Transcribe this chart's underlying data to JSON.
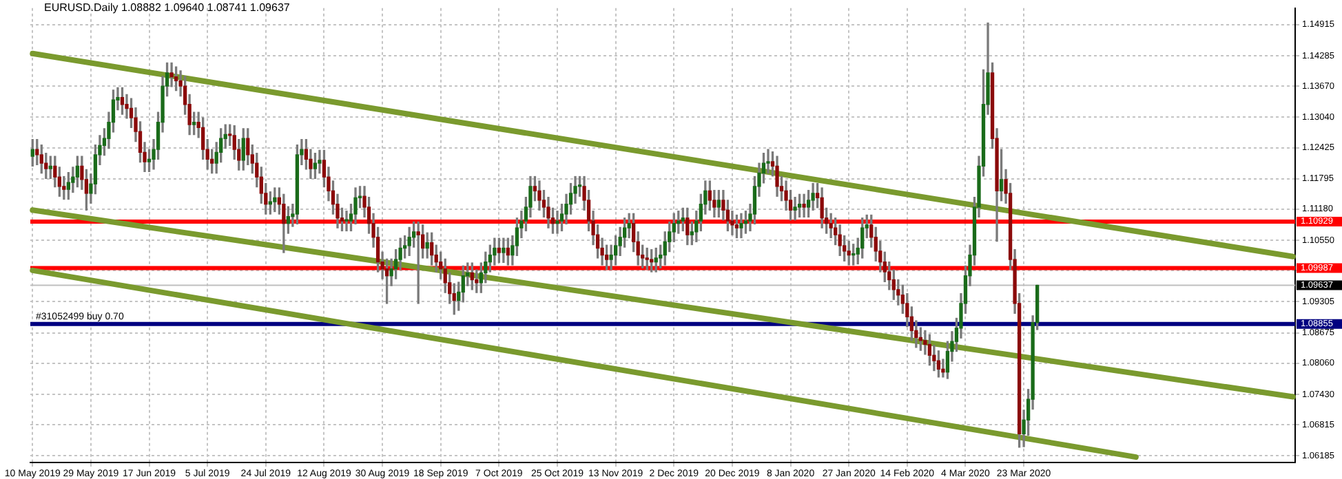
{
  "chart_data": {
    "type": "candlestick",
    "title": "EURUSD.Daily 1.08882 1.09640 1.08741 1.09637",
    "categories": [
      "10 May 2019",
      null,
      null,
      null,
      null,
      null,
      null,
      null,
      null,
      null,
      null,
      null,
      null,
      "29 May 2019",
      null,
      null,
      null,
      null,
      null,
      null,
      null,
      null,
      null,
      null,
      null,
      null,
      "17 Jun 2019",
      null,
      null,
      null,
      null,
      null,
      null,
      null,
      null,
      null,
      null,
      null,
      null,
      "5 Jul 2019",
      null,
      null,
      null,
      null,
      null,
      null,
      null,
      null,
      null,
      null,
      null,
      null,
      "24 Jul 2019",
      null,
      null,
      null,
      null,
      null,
      null,
      null,
      null,
      null,
      null,
      null,
      null,
      "12 Aug 2019",
      null,
      null,
      null,
      null,
      null,
      null,
      null,
      null,
      null,
      null,
      null,
      null,
      "30 Aug 2019",
      null,
      null,
      null,
      null,
      null,
      null,
      null,
      null,
      null,
      null,
      null,
      null,
      "18 Sep 2019",
      null,
      null,
      null,
      null,
      null,
      null,
      null,
      null,
      null,
      null,
      null,
      null,
      "7 Oct 2019",
      null,
      null,
      null,
      null,
      null,
      null,
      null,
      null,
      null,
      null,
      null,
      null,
      "25 Oct 2019",
      null,
      null,
      null,
      null,
      null,
      null,
      null,
      null,
      null,
      null,
      null,
      null,
      "13 Nov 2019",
      null,
      null,
      null,
      null,
      null,
      null,
      null,
      null,
      null,
      null,
      null,
      null,
      "2 Dec 2019",
      null,
      null,
      null,
      null,
      null,
      null,
      null,
      null,
      null,
      null,
      null,
      null,
      "20 Dec 2019",
      null,
      null,
      null,
      null,
      null,
      null,
      null,
      null,
      null,
      null,
      null,
      null,
      "8 Jan 2020",
      null,
      null,
      null,
      null,
      null,
      null,
      null,
      null,
      null,
      null,
      null,
      null,
      "27 Jan 2020",
      null,
      null,
      null,
      null,
      null,
      null,
      null,
      null,
      null,
      null,
      null,
      null,
      "14 Feb 2020",
      null,
      null,
      null,
      null,
      null,
      null,
      null,
      null,
      null,
      null,
      null,
      null,
      "4 Mar 2020",
      null,
      null,
      null,
      null,
      null,
      null,
      null,
      null,
      null,
      null,
      null,
      null,
      "23 Mar 2020",
      null,
      null,
      null,
      null,
      null,
      null,
      null,
      null,
      null,
      null,
      null,
      null,
      null,
      null,
      null,
      null,
      null,
      null,
      null,
      null,
      null,
      null,
      null,
      null,
      null,
      null,
      null,
      null,
      null,
      null,
      null,
      null,
      null,
      null,
      null,
      null,
      null,
      null,
      null,
      null,
      null,
      null,
      null,
      null,
      null,
      null,
      null,
      null,
      null,
      null,
      null,
      null,
      null,
      null,
      null,
      null,
      null,
      null,
      null,
      null
    ],
    "ohlc": [
      [
        1.1225,
        1.1259,
        1.1205,
        1.1239
      ],
      [
        1.1239,
        1.1259,
        1.1208,
        1.1228
      ],
      [
        1.1228,
        1.1248,
        1.1191,
        1.1211
      ],
      [
        1.1211,
        1.1231,
        1.118,
        1.12
      ],
      [
        1.12,
        1.1225,
        1.118,
        1.1205
      ],
      [
        1.1205,
        1.1225,
        1.1163,
        1.1183
      ],
      [
        1.1183,
        1.1203,
        1.1144,
        1.1164
      ],
      [
        1.1164,
        1.1184,
        1.1138,
        1.1158
      ],
      [
        1.1158,
        1.1192,
        1.1138,
        1.1172
      ],
      [
        1.1172,
        1.1203,
        1.1152,
        1.1183
      ],
      [
        1.1183,
        1.1225,
        1.1163,
        1.1205
      ],
      [
        1.1205,
        1.1225,
        1.1158,
        1.1178
      ],
      [
        1.1178,
        1.1198,
        1.1116,
        1.115
      ],
      [
        1.115,
        1.1189,
        1.113,
        1.1169
      ],
      [
        1.1169,
        1.1248,
        1.1149,
        1.1228
      ],
      [
        1.1228,
        1.1267,
        1.1208,
        1.1247
      ],
      [
        1.1247,
        1.1281,
        1.1227,
        1.1261
      ],
      [
        1.1261,
        1.1314,
        1.1241,
        1.1294
      ],
      [
        1.1294,
        1.1359,
        1.1274,
        1.1339
      ],
      [
        1.1339,
        1.1364,
        1.1319,
        1.1344
      ],
      [
        1.1344,
        1.1364,
        1.131,
        1.133
      ],
      [
        1.133,
        1.135,
        1.1302,
        1.1322
      ],
      [
        1.1322,
        1.1342,
        1.1283,
        1.1303
      ],
      [
        1.1303,
        1.1323,
        1.1255,
        1.1275
      ],
      [
        1.1275,
        1.1295,
        1.1213,
        1.1233
      ],
      [
        1.1233,
        1.1253,
        1.1194,
        1.1214
      ],
      [
        1.1214,
        1.1239,
        1.1194,
        1.1219
      ],
      [
        1.1219,
        1.1259,
        1.1199,
        1.1239
      ],
      [
        1.1239,
        1.1314,
        1.1219,
        1.1294
      ],
      [
        1.1294,
        1.1387,
        1.1274,
        1.1367
      ],
      [
        1.1367,
        1.1414,
        1.1347,
        1.1394
      ],
      [
        1.1394,
        1.1414,
        1.1366,
        1.1386
      ],
      [
        1.1386,
        1.1406,
        1.1358,
        1.1378
      ],
      [
        1.1378,
        1.1398,
        1.1347,
        1.1367
      ],
      [
        1.1367,
        1.1387,
        1.131,
        1.133
      ],
      [
        1.133,
        1.135,
        1.1269,
        1.1289
      ],
      [
        1.1289,
        1.1314,
        1.1269,
        1.1294
      ],
      [
        1.1294,
        1.1314,
        1.1263,
        1.1283
      ],
      [
        1.1283,
        1.1303,
        1.1219,
        1.1239
      ],
      [
        1.1239,
        1.1259,
        1.1199,
        1.1219
      ],
      [
        1.1219,
        1.1239,
        1.1191,
        1.1211
      ],
      [
        1.1211,
        1.1253,
        1.1191,
        1.1233
      ],
      [
        1.1233,
        1.1281,
        1.1213,
        1.1261
      ],
      [
        1.1261,
        1.1289,
        1.1241,
        1.1269
      ],
      [
        1.1269,
        1.1289,
        1.1247,
        1.1267
      ],
      [
        1.1267,
        1.1287,
        1.1219,
        1.1239
      ],
      [
        1.1239,
        1.1259,
        1.1197,
        1.1217
      ],
      [
        1.1217,
        1.1281,
        1.1197,
        1.1261
      ],
      [
        1.1261,
        1.1281,
        1.1208,
        1.1228
      ],
      [
        1.1228,
        1.1248,
        1.1191,
        1.1211
      ],
      [
        1.1211,
        1.1231,
        1.1163,
        1.1183
      ],
      [
        1.1183,
        1.1203,
        1.113,
        1.115
      ],
      [
        1.115,
        1.117,
        1.1108,
        1.1128
      ],
      [
        1.1128,
        1.1153,
        1.1108,
        1.1133
      ],
      [
        1.1133,
        1.1161,
        1.1113,
        1.1141
      ],
      [
        1.1141,
        1.1161,
        1.1108,
        1.1128
      ],
      [
        1.1128,
        1.1148,
        1.103,
        1.1089
      ],
      [
        1.1089,
        1.1123,
        1.1069,
        1.1103
      ],
      [
        1.1103,
        1.1128,
        1.1083,
        1.1108
      ],
      [
        1.1108,
        1.1248,
        1.1088,
        1.1228
      ],
      [
        1.1228,
        1.1259,
        1.1208,
        1.1239
      ],
      [
        1.1239,
        1.1259,
        1.1199,
        1.1219
      ],
      [
        1.1219,
        1.1239,
        1.118,
        1.12
      ],
      [
        1.12,
        1.1231,
        1.118,
        1.1211
      ],
      [
        1.1211,
        1.1237,
        1.1191,
        1.1217
      ],
      [
        1.1217,
        1.1237,
        1.1163,
        1.1183
      ],
      [
        1.1183,
        1.1203,
        1.1135,
        1.1155
      ],
      [
        1.1155,
        1.1175,
        1.1108,
        1.1128
      ],
      [
        1.1128,
        1.1148,
        1.108,
        1.11
      ],
      [
        1.11,
        1.112,
        1.1074,
        1.1094
      ],
      [
        1.1094,
        1.1114,
        1.1074,
        1.1094
      ],
      [
        1.1094,
        1.1128,
        1.1074,
        1.1108
      ],
      [
        1.1108,
        1.1161,
        1.1088,
        1.1141
      ],
      [
        1.1141,
        1.1164,
        1.1121,
        1.1144
      ],
      [
        1.1144,
        1.1164,
        1.1102,
        1.1122
      ],
      [
        1.1122,
        1.1142,
        1.1069,
        1.1089
      ],
      [
        1.1089,
        1.1109,
        1.1041,
        1.1061
      ],
      [
        1.1061,
        1.1081,
        1.0991,
        1.1011
      ],
      [
        1.1011,
        1.1031,
        1.0977,
        1.0997
      ],
      [
        1.0997,
        1.1017,
        1.0927,
        1.0983
      ],
      [
        1.0983,
        1.1017,
        1.0963,
        1.0997
      ],
      [
        1.0997,
        1.1036,
        1.0977,
        1.1016
      ],
      [
        1.1016,
        1.1059,
        1.0996,
        1.1039
      ],
      [
        1.1039,
        1.1064,
        1.1019,
        1.1044
      ],
      [
        1.1044,
        1.1081,
        1.1024,
        1.1061
      ],
      [
        1.1061,
        1.1092,
        1.1041,
        1.1072
      ],
      [
        1.1072,
        1.1092,
        1.0927,
        1.1066
      ],
      [
        1.1066,
        1.1086,
        1.1019,
        1.1039
      ],
      [
        1.1039,
        1.107,
        1.1019,
        1.105
      ],
      [
        1.105,
        1.107,
        1.1005,
        1.1025
      ],
      [
        1.1025,
        1.1045,
        1.0991,
        1.1011
      ],
      [
        1.1011,
        1.1031,
        1.0977,
        1.0997
      ],
      [
        1.0997,
        1.1017,
        1.0949,
        1.0969
      ],
      [
        1.0969,
        1.0989,
        1.0927,
        1.0947
      ],
      [
        1.0947,
        1.0967,
        1.0905,
        1.0933
      ],
      [
        1.0933,
        1.097,
        1.0913,
        1.095
      ],
      [
        1.095,
        1.1003,
        1.093,
        1.0983
      ],
      [
        1.0983,
        1.1009,
        1.0963,
        1.0989
      ],
      [
        1.0989,
        1.1009,
        1.0955,
        1.0975
      ],
      [
        1.0975,
        1.0995,
        1.0949,
        1.0969
      ],
      [
        1.0969,
        1.1009,
        1.0949,
        1.0989
      ],
      [
        1.0989,
        1.1031,
        1.0969,
        1.1011
      ],
      [
        1.1011,
        1.1045,
        1.0991,
        1.1025
      ],
      [
        1.1025,
        1.1059,
        1.1005,
        1.1039
      ],
      [
        1.1039,
        1.1059,
        1.101,
        1.103
      ],
      [
        1.103,
        1.1059,
        1.101,
        1.1039
      ],
      [
        1.1039,
        1.1059,
        1.1005,
        1.1025
      ],
      [
        1.1025,
        1.1064,
        1.1005,
        1.1044
      ],
      [
        1.1044,
        1.11,
        1.1024,
        1.108
      ],
      [
        1.108,
        1.1114,
        1.106,
        1.1094
      ],
      [
        1.1094,
        1.1142,
        1.1074,
        1.1122
      ],
      [
        1.1122,
        1.1184,
        1.1102,
        1.1164
      ],
      [
        1.1164,
        1.1184,
        1.1135,
        1.1155
      ],
      [
        1.1155,
        1.1175,
        1.1116,
        1.1136
      ],
      [
        1.1136,
        1.1156,
        1.1102,
        1.1122
      ],
      [
        1.1122,
        1.1142,
        1.108,
        1.11
      ],
      [
        1.11,
        1.112,
        1.1069,
        1.1089
      ],
      [
        1.1089,
        1.1114,
        1.1069,
        1.1094
      ],
      [
        1.1094,
        1.1128,
        1.1074,
        1.1108
      ],
      [
        1.1108,
        1.1148,
        1.1088,
        1.1128
      ],
      [
        1.1128,
        1.117,
        1.1108,
        1.115
      ],
      [
        1.115,
        1.1184,
        1.113,
        1.1164
      ],
      [
        1.1164,
        1.1184,
        1.1144,
        1.1164
      ],
      [
        1.1164,
        1.1184,
        1.1116,
        1.1136
      ],
      [
        1.1136,
        1.1156,
        1.1074,
        1.1094
      ],
      [
        1.1094,
        1.1114,
        1.1046,
        1.1066
      ],
      [
        1.1066,
        1.1086,
        1.1019,
        1.1039
      ],
      [
        1.1039,
        1.1059,
        1.1005,
        1.1025
      ],
      [
        1.1025,
        1.1045,
        1.0996,
        1.1016
      ],
      [
        1.1016,
        1.1045,
        1.0996,
        1.1025
      ],
      [
        1.1025,
        1.1064,
        1.1005,
        1.1044
      ],
      [
        1.1044,
        1.1081,
        1.1024,
        1.1061
      ],
      [
        1.1061,
        1.11,
        1.1041,
        1.108
      ],
      [
        1.108,
        1.1109,
        1.106,
        1.1089
      ],
      [
        1.1089,
        1.1109,
        1.1032,
        1.1052
      ],
      [
        1.1052,
        1.1072,
        1.1005,
        1.1025
      ],
      [
        1.1025,
        1.1045,
        1.0999,
        1.1019
      ],
      [
        1.1019,
        1.1039,
        1.0996,
        1.1016
      ],
      [
        1.1016,
        1.1036,
        1.0991,
        1.1011
      ],
      [
        1.1011,
        1.1039,
        1.0991,
        1.1019
      ],
      [
        1.1019,
        1.1045,
        1.0999,
        1.1025
      ],
      [
        1.1025,
        1.1072,
        1.1005,
        1.1052
      ],
      [
        1.1052,
        1.1092,
        1.1032,
        1.1072
      ],
      [
        1.1072,
        1.1109,
        1.1052,
        1.1089
      ],
      [
        1.1089,
        1.1114,
        1.1069,
        1.1094
      ],
      [
        1.1094,
        1.112,
        1.1074,
        1.11
      ],
      [
        1.11,
        1.112,
        1.1046,
        1.1066
      ],
      [
        1.1066,
        1.1092,
        1.1046,
        1.1072
      ],
      [
        1.1072,
        1.1114,
        1.1052,
        1.1094
      ],
      [
        1.1094,
        1.1148,
        1.1074,
        1.1128
      ],
      [
        1.1128,
        1.1175,
        1.1108,
        1.1155
      ],
      [
        1.1155,
        1.1175,
        1.1116,
        1.1136
      ],
      [
        1.1136,
        1.1156,
        1.1102,
        1.1122
      ],
      [
        1.1122,
        1.1156,
        1.1102,
        1.1136
      ],
      [
        1.1136,
        1.1156,
        1.1096,
        1.1116
      ],
      [
        1.1116,
        1.1136,
        1.1074,
        1.1094
      ],
      [
        1.1094,
        1.1114,
        1.1066,
        1.1086
      ],
      [
        1.1086,
        1.1106,
        1.106,
        1.108
      ],
      [
        1.108,
        1.1109,
        1.106,
        1.1089
      ],
      [
        1.1089,
        1.1114,
        1.1069,
        1.1094
      ],
      [
        1.1094,
        1.1128,
        1.1074,
        1.1108
      ],
      [
        1.1108,
        1.1184,
        1.1088,
        1.1164
      ],
      [
        1.1164,
        1.1211,
        1.1144,
        1.1191
      ],
      [
        1.1191,
        1.1231,
        1.1171,
        1.1211
      ],
      [
        1.1211,
        1.1239,
        1.1191,
        1.1214
      ],
      [
        1.1214,
        1.1234,
        1.1185,
        1.1205
      ],
      [
        1.1205,
        1.1225,
        1.1144,
        1.1164
      ],
      [
        1.1164,
        1.1184,
        1.1135,
        1.1155
      ],
      [
        1.1155,
        1.1175,
        1.1116,
        1.1136
      ],
      [
        1.1136,
        1.1156,
        1.1096,
        1.1116
      ],
      [
        1.1116,
        1.1142,
        1.1096,
        1.1122
      ],
      [
        1.1122,
        1.1148,
        1.1102,
        1.1128
      ],
      [
        1.1128,
        1.1148,
        1.1102,
        1.1122
      ],
      [
        1.1122,
        1.1156,
        1.1102,
        1.1136
      ],
      [
        1.1136,
        1.117,
        1.1116,
        1.115
      ],
      [
        1.115,
        1.117,
        1.1121,
        1.1141
      ],
      [
        1.1141,
        1.1161,
        1.108,
        1.11
      ],
      [
        1.11,
        1.112,
        1.1069,
        1.1089
      ],
      [
        1.1089,
        1.1109,
        1.106,
        1.108
      ],
      [
        1.108,
        1.11,
        1.1046,
        1.1066
      ],
      [
        1.1066,
        1.1086,
        1.1024,
        1.1044
      ],
      [
        1.1044,
        1.1064,
        1.1013,
        1.1033
      ],
      [
        1.1033,
        1.1053,
        1.1005,
        1.1025
      ],
      [
        1.1025,
        1.1047,
        1.1005,
        1.1027
      ],
      [
        1.1027,
        1.1059,
        1.1007,
        1.1039
      ],
      [
        1.1039,
        1.11,
        1.1019,
        1.108
      ],
      [
        1.108,
        1.1106,
        1.106,
        1.1086
      ],
      [
        1.1086,
        1.1106,
        1.1041,
        1.1061
      ],
      [
        1.1061,
        1.1081,
        1.1013,
        1.1033
      ],
      [
        1.1033,
        1.1053,
        1.0991,
        1.1011
      ],
      [
        1.1011,
        1.1031,
        1.0971,
        1.0991
      ],
      [
        1.0991,
        1.1011,
        1.0955,
        1.0975
      ],
      [
        1.0975,
        1.0995,
        1.0935,
        1.0955
      ],
      [
        1.0955,
        1.0975,
        1.0924,
        1.0944
      ],
      [
        1.0944,
        1.0964,
        1.0907,
        1.0927
      ],
      [
        1.0927,
        1.0947,
        1.088,
        1.09
      ],
      [
        1.09,
        1.092,
        1.0852,
        1.0872
      ],
      [
        1.0872,
        1.0892,
        1.0838,
        1.0858
      ],
      [
        1.0858,
        1.0878,
        1.0832,
        1.0852
      ],
      [
        1.0852,
        1.0872,
        1.0824,
        1.0844
      ],
      [
        1.0844,
        1.0864,
        1.0802,
        1.0822
      ],
      [
        1.0822,
        1.0842,
        1.0791,
        1.0811
      ],
      [
        1.0811,
        1.0831,
        1.0778,
        1.0794
      ],
      [
        1.0794,
        1.0814,
        1.0778,
        1.0788
      ],
      [
        1.0788,
        1.085,
        1.0775,
        1.083
      ],
      [
        1.083,
        1.087,
        1.081,
        1.085
      ],
      [
        1.085,
        1.0897,
        1.083,
        1.0877
      ],
      [
        1.0877,
        1.0947,
        1.0857,
        1.0927
      ],
      [
        1.0927,
        1.1003,
        1.0907,
        1.0983
      ],
      [
        1.0983,
        1.1045,
        1.0963,
        1.1025
      ],
      [
        1.1025,
        1.1142,
        1.1005,
        1.1122
      ],
      [
        1.1122,
        1.1225,
        1.1102,
        1.1205
      ],
      [
        1.1205,
        1.14,
        1.1185,
        1.133
      ],
      [
        1.133,
        1.1495,
        1.131,
        1.1394
      ],
      [
        1.1394,
        1.1414,
        1.1241,
        1.1261
      ],
      [
        1.1261,
        1.1281,
        1.1053,
        1.1155
      ],
      [
        1.1155,
        1.1239,
        1.1135,
        1.1178
      ],
      [
        1.1178,
        1.1198,
        1.113,
        1.115
      ],
      [
        1.115,
        1.117,
        1.0996,
        1.1016
      ],
      [
        1.1016,
        1.1036,
        1.0907,
        1.0927
      ],
      [
        1.0927,
        1.0947,
        1.0636,
        1.0663
      ],
      [
        1.0663,
        1.0711,
        1.0637,
        1.0691
      ],
      [
        1.0691,
        1.0753,
        1.066,
        1.0733
      ],
      [
        1.0733,
        1.0902,
        1.0713,
        1.08882
      ],
      [
        1.08882,
        1.0964,
        1.08741,
        1.09637
      ],
      null,
      null,
      null,
      null,
      null,
      null,
      null,
      null,
      null,
      null,
      null,
      null,
      null,
      null,
      null,
      null,
      null,
      null,
      null,
      null,
      null,
      null,
      null,
      null,
      null,
      null,
      null,
      null,
      null,
      null,
      null,
      null,
      null,
      null,
      null,
      null,
      null,
      null,
      null,
      null,
      null,
      null,
      null,
      null,
      null,
      null,
      null,
      null,
      null,
      null,
      null,
      null,
      null,
      null,
      null,
      null,
      null
    ],
    "series": [
      {
        "type": "line",
        "color": "#7a9a2e",
        "values": [
          1.1433,
          null,
          null,
          null,
          null,
          null,
          null,
          null,
          null,
          null,
          null,
          null,
          null,
          null,
          null,
          null,
          null,
          null,
          null,
          null,
          null,
          null,
          null,
          null,
          null,
          null,
          null,
          null,
          null,
          null,
          null,
          null,
          null,
          null,
          null,
          null,
          null,
          null,
          null,
          null,
          null,
          null,
          null,
          null,
          null,
          null,
          null,
          null,
          null,
          null,
          null,
          null,
          null,
          null,
          null,
          null,
          null,
          null,
          null,
          null,
          null,
          null,
          null,
          null,
          null,
          null,
          null,
          null,
          null,
          null,
          null,
          null,
          null,
          null,
          null,
          null,
          null,
          null,
          null,
          null,
          null,
          null,
          null,
          null,
          null,
          null,
          null,
          null,
          null,
          null,
          null,
          null,
          null,
          null,
          null,
          null,
          null,
          null,
          null,
          null,
          null,
          null,
          null,
          null,
          null,
          null,
          null,
          null,
          null,
          null,
          null,
          null,
          null,
          null,
          null,
          null,
          null,
          null,
          null,
          null,
          null,
          null,
          null,
          null,
          null,
          null,
          null,
          null,
          null,
          null,
          null,
          null,
          null,
          null,
          null,
          null,
          null,
          null,
          null,
          null,
          null,
          null,
          null,
          null,
          null,
          null,
          null,
          null,
          null,
          null,
          null,
          null,
          null,
          null,
          null,
          null,
          null,
          null,
          null,
          null,
          null,
          null,
          null,
          null,
          null,
          null,
          null,
          null,
          null,
          null,
          null,
          null,
          null,
          null,
          null,
          null,
          null,
          null,
          null,
          null,
          null,
          null,
          null,
          null,
          null,
          null,
          null,
          null,
          null,
          null,
          null,
          null,
          null,
          null,
          null,
          null,
          null,
          null,
          null,
          null,
          null,
          null,
          null,
          null,
          null,
          null,
          null,
          null,
          null,
          null,
          null,
          null,
          null,
          null,
          null,
          null,
          null,
          null,
          null,
          null,
          null,
          null,
          null,
          null,
          null,
          null,
          null,
          null,
          null,
          null,
          null,
          null,
          null,
          null,
          null,
          null,
          null,
          null,
          null,
          null,
          null,
          null,
          null,
          null,
          null,
          null,
          null,
          null,
          null,
          null,
          null,
          null,
          null,
          null,
          null,
          null,
          null,
          null,
          null,
          null,
          null,
          null,
          null,
          null,
          null,
          null,
          null,
          null,
          null,
          null,
          null,
          null,
          null,
          null,
          null,
          null,
          null,
          null,
          null,
          null,
          null,
          1.1022
        ]
      },
      {
        "type": "line",
        "color": "#7a9a2e",
        "values": [
          1.1116,
          null,
          null,
          null,
          null,
          null,
          null,
          null,
          null,
          null,
          null,
          null,
          null,
          null,
          null,
          null,
          null,
          null,
          null,
          null,
          null,
          null,
          null,
          null,
          null,
          null,
          null,
          null,
          null,
          null,
          null,
          null,
          null,
          null,
          null,
          null,
          null,
          null,
          null,
          null,
          null,
          null,
          null,
          null,
          null,
          null,
          null,
          null,
          null,
          null,
          null,
          null,
          null,
          null,
          null,
          null,
          null,
          null,
          null,
          null,
          null,
          null,
          null,
          null,
          null,
          null,
          null,
          null,
          null,
          null,
          null,
          null,
          null,
          null,
          null,
          null,
          null,
          null,
          null,
          null,
          null,
          null,
          null,
          null,
          null,
          null,
          null,
          null,
          null,
          null,
          null,
          null,
          null,
          null,
          null,
          null,
          null,
          null,
          null,
          null,
          null,
          null,
          null,
          null,
          null,
          null,
          null,
          null,
          null,
          null,
          null,
          null,
          null,
          null,
          null,
          null,
          null,
          null,
          null,
          null,
          null,
          null,
          null,
          null,
          null,
          null,
          null,
          null,
          null,
          null,
          null,
          null,
          null,
          null,
          null,
          null,
          null,
          null,
          null,
          null,
          null,
          null,
          null,
          null,
          null,
          null,
          null,
          null,
          null,
          null,
          null,
          null,
          null,
          null,
          null,
          null,
          null,
          null,
          null,
          null,
          null,
          null,
          null,
          null,
          null,
          null,
          null,
          null,
          null,
          null,
          null,
          null,
          null,
          null,
          null,
          null,
          null,
          null,
          null,
          null,
          null,
          null,
          null,
          null,
          null,
          null,
          null,
          null,
          null,
          null,
          null,
          null,
          null,
          null,
          null,
          null,
          null,
          null,
          null,
          null,
          null,
          null,
          null,
          null,
          null,
          null,
          null,
          null,
          null,
          null,
          null,
          null,
          null,
          null,
          null,
          null,
          null,
          null,
          null,
          null,
          null,
          null,
          null,
          null,
          null,
          null,
          null,
          null,
          null,
          null,
          null,
          null,
          null,
          null,
          null,
          null,
          null,
          null,
          null,
          null,
          null,
          null,
          null,
          null,
          null,
          null,
          null,
          null,
          null,
          null,
          null,
          null,
          null,
          null,
          null,
          null,
          null,
          null,
          null,
          null,
          null,
          null,
          null,
          null,
          null,
          null,
          null,
          null,
          null,
          null,
          null,
          null,
          null,
          null,
          null,
          null,
          null,
          null,
          null,
          null,
          null,
          1.0738
        ]
      },
      {
        "type": "line",
        "color": "#7a9a2e",
        "values": [
          1.0994,
          null,
          null,
          null,
          null,
          null,
          null,
          null,
          null,
          null,
          null,
          null,
          null,
          null,
          null,
          null,
          null,
          null,
          null,
          null,
          null,
          null,
          null,
          null,
          null,
          null,
          null,
          null,
          null,
          null,
          null,
          null,
          null,
          null,
          null,
          null,
          null,
          null,
          null,
          null,
          null,
          null,
          null,
          null,
          null,
          null,
          null,
          null,
          null,
          null,
          null,
          null,
          null,
          null,
          null,
          null,
          null,
          null,
          null,
          null,
          null,
          null,
          null,
          null,
          null,
          null,
          null,
          null,
          null,
          null,
          null,
          null,
          null,
          null,
          null,
          null,
          null,
          null,
          null,
          null,
          null,
          null,
          null,
          null,
          null,
          null,
          null,
          null,
          null,
          null,
          null,
          null,
          null,
          null,
          null,
          null,
          null,
          null,
          null,
          null,
          null,
          null,
          null,
          null,
          null,
          null,
          null,
          null,
          null,
          null,
          null,
          null,
          null,
          null,
          null,
          null,
          null,
          null,
          null,
          null,
          null,
          null,
          null,
          null,
          null,
          null,
          null,
          null,
          null,
          null,
          null,
          null,
          null,
          null,
          null,
          null,
          null,
          null,
          null,
          null,
          null,
          null,
          null,
          null,
          null,
          null,
          null,
          null,
          null,
          null,
          null,
          null,
          null,
          null,
          null,
          null,
          null,
          null,
          null,
          null,
          null,
          null,
          null,
          null,
          null,
          null,
          null,
          null,
          null,
          null,
          null,
          null,
          null,
          null,
          null,
          null,
          null,
          null,
          null,
          null,
          null,
          null,
          null,
          null,
          null,
          null,
          null,
          null,
          null,
          null,
          null,
          null,
          null,
          null,
          null,
          null,
          null,
          null,
          null,
          null,
          null,
          null,
          null,
          null,
          null,
          null,
          null,
          null,
          null,
          null,
          null,
          null,
          null,
          null,
          null,
          null,
          null,
          null,
          null,
          null,
          null,
          null,
          null,
          null,
          null,
          null,
          null,
          null,
          null,
          null,
          null,
          null,
          null,
          null,
          null,
          null,
          null,
          null,
          null,
          null,
          null,
          null,
          null,
          null,
          null,
          null,
          1.0616,
          null,
          null,
          null,
          null,
          null,
          null,
          null,
          null,
          null,
          null,
          null,
          null,
          null,
          null,
          null,
          null,
          null,
          null,
          null,
          null,
          null,
          null,
          null,
          null,
          null,
          null,
          null,
          null,
          null,
          null,
          null,
          null,
          null,
          null,
          null
        ]
      }
    ],
    "ylim": [
      1.0605,
      1.1525
    ],
    "yticks": [
      1.14915,
      1.14285,
      {
        "value": 1.1367,
        "label": "1.13670"
      },
      {
        "value": 1.1304,
        "label": "1.13040"
      },
      1.12425,
      1.11795,
      {
        "value": 1.1118,
        "label": "1.11180"
      },
      {
        "value": 1.1055,
        "label": "1.10550"
      },
      {
        "value": 1.09935,
        "label": null
      },
      1.09305,
      1.08675,
      {
        "value": 1.0806,
        "label": "1.08060"
      },
      {
        "value": 1.0743,
        "label": "1.07430"
      },
      1.06815,
      1.06185
    ],
    "ref_lines": [
      {
        "axis": "y",
        "value": 1.10929,
        "color": "#ff0000",
        "label": "1.10929"
      },
      {
        "axis": "y",
        "value": 1.09987,
        "color": "#ff0000",
        "label": "1.09987"
      },
      {
        "axis": "y",
        "value": 1.09637,
        "color": "#c0c0c0",
        "label": "1.09637"
      },
      {
        "axis": "y",
        "value": 1.08855,
        "color": "#000080",
        "label": "1.08855"
      }
    ],
    "annotations": [
      {
        "text": "#31052499 buy 0.70",
        "y": 1.08855
      }
    ],
    "grid": true
  }
}
